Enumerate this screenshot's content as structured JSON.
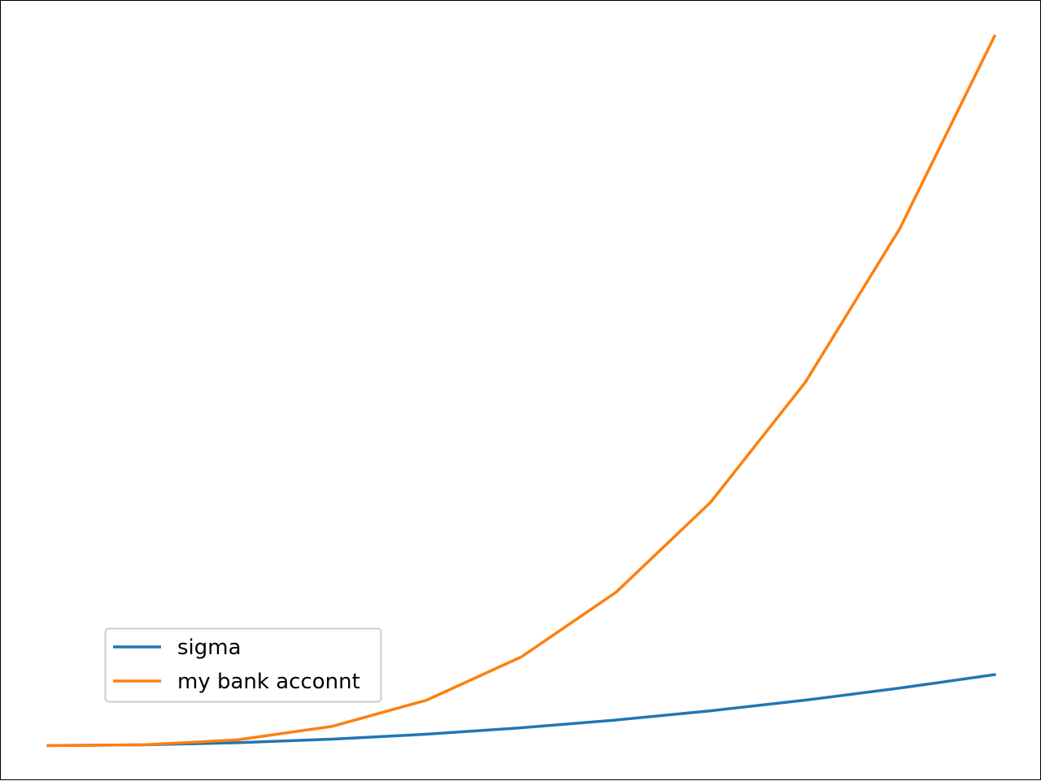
{
  "chart_data": {
    "type": "line",
    "title": "",
    "xlabel": "",
    "ylabel": "",
    "x": [
      1,
      2,
      3,
      4,
      5,
      6,
      7,
      8,
      9,
      10,
      11
    ],
    "series": [
      {
        "name": "sigma",
        "color": "#1f77b4",
        "values": [
          0,
          1,
          4,
          9,
          16,
          25,
          36,
          49,
          64,
          81,
          100
        ]
      },
      {
        "name": "my bank acconnt",
        "color": "#ff7f0e",
        "values": [
          0,
          1,
          8,
          27,
          64,
          125,
          216,
          343,
          512,
          729,
          1000
        ]
      }
    ],
    "xlim": [
      0.5,
      11.5
    ],
    "ylim": [
      -50,
      1050
    ],
    "axes_visible": false,
    "grid": false,
    "legend_position": "lower-left"
  }
}
